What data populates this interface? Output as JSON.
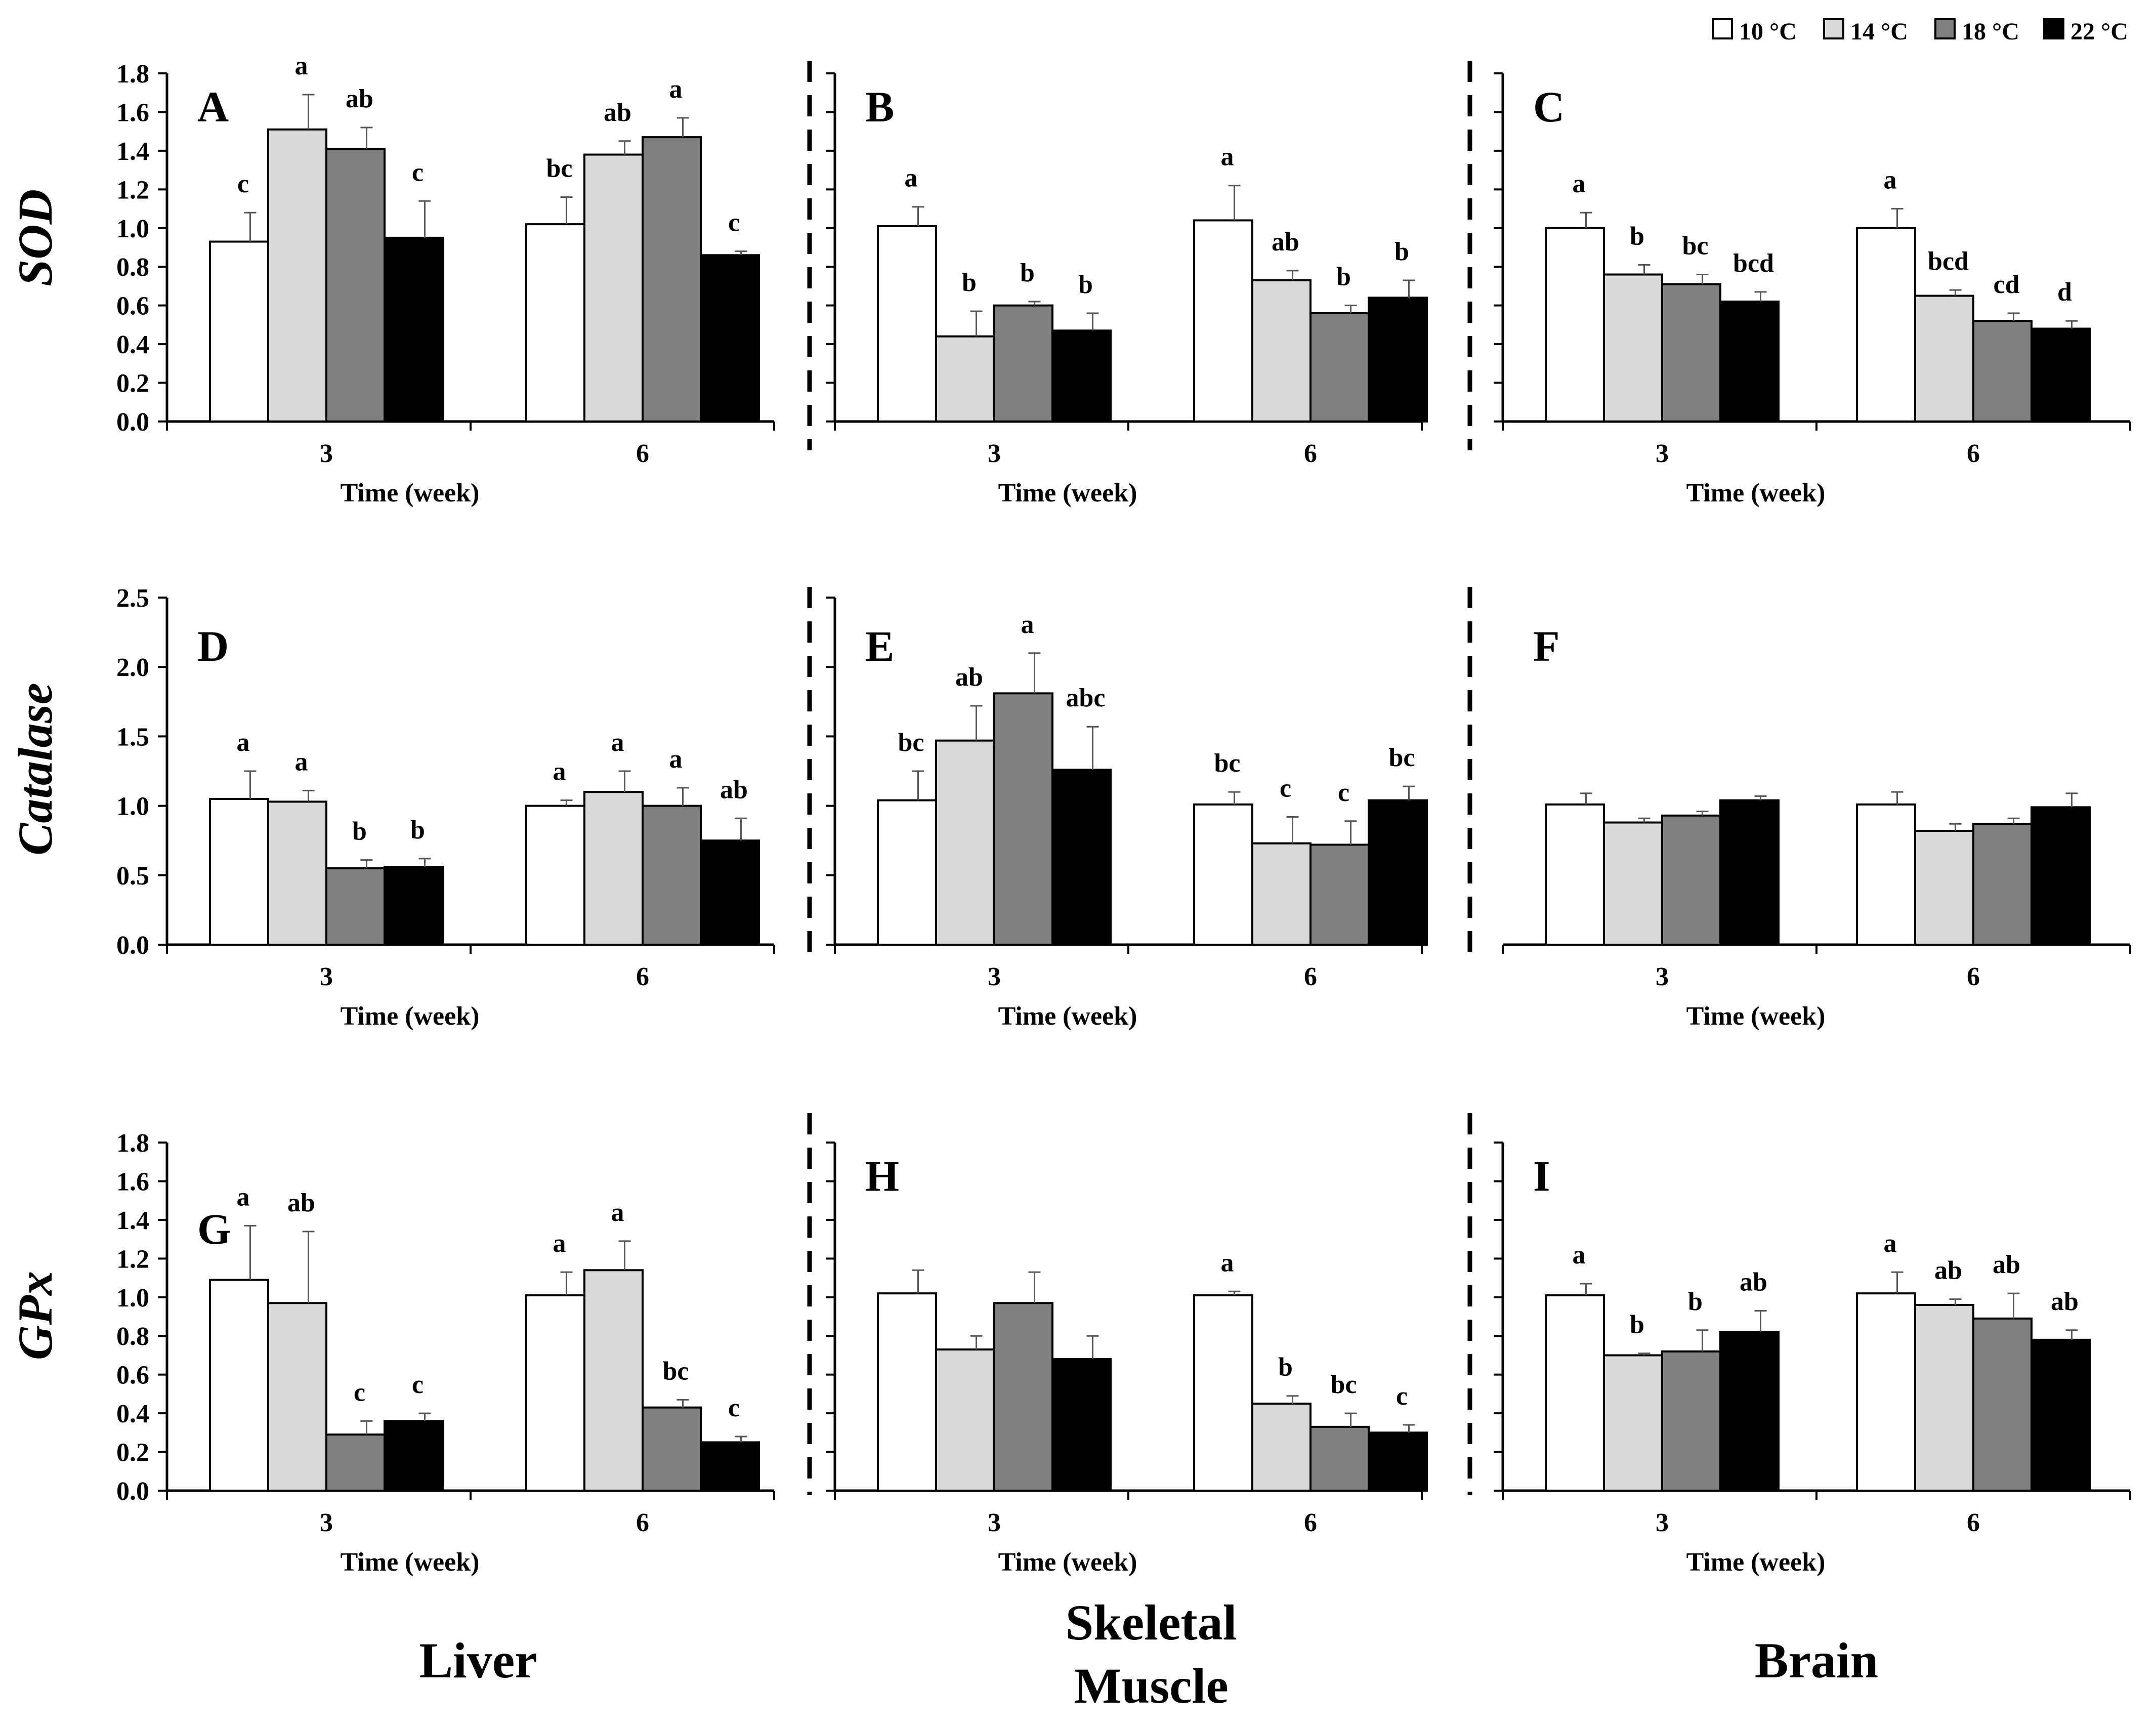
{
  "legend": {
    "position": "top-right",
    "items": [
      {
        "label": "10 °C",
        "color": "#ffffff"
      },
      {
        "label": "14 °C",
        "color": "#d9d9d9"
      },
      {
        "label": "18 °C",
        "color": "#808080"
      },
      {
        "label": "22 °C",
        "color": "#000000"
      }
    ]
  },
  "row_labels": [
    "SOD",
    "Catalase",
    "GPx"
  ],
  "column_labels": [
    "Liver",
    "Skeletal\nMuscle",
    "Brain"
  ],
  "chart_data": [
    {
      "type": "bar",
      "panel": "A",
      "ylabel": "SOD",
      "xlabel": "Time (week)",
      "categories": [
        "3",
        "6"
      ],
      "ylim": [
        0,
        1.8
      ],
      "yticks": [
        "0.0",
        "0.2",
        "0.4",
        "0.6",
        "0.8",
        "1.0",
        "1.2",
        "1.4",
        "1.6",
        "1.8"
      ],
      "series": [
        {
          "name": "10 °C",
          "values": [
            0.93,
            1.02
          ],
          "errors": [
            0.15,
            0.14
          ],
          "letters": [
            "c",
            "bc"
          ]
        },
        {
          "name": "14 °C",
          "values": [
            1.51,
            1.38
          ],
          "errors": [
            0.18,
            0.07
          ],
          "letters": [
            "a",
            "ab"
          ]
        },
        {
          "name": "18 °C",
          "values": [
            1.41,
            1.47
          ],
          "errors": [
            0.11,
            0.1
          ],
          "letters": [
            "ab",
            "a"
          ]
        },
        {
          "name": "22 °C",
          "values": [
            0.95,
            0.86
          ],
          "errors": [
            0.19,
            0.02
          ],
          "letters": [
            "c",
            "c"
          ]
        }
      ]
    },
    {
      "type": "bar",
      "panel": "B",
      "ylabel": "SOD",
      "xlabel": "Time (week)",
      "categories": [
        "3",
        "6"
      ],
      "ylim": [
        0,
        1.8
      ],
      "yticks": [],
      "series": [
        {
          "name": "10 °C",
          "values": [
            1.01,
            1.04
          ],
          "errors": [
            0.1,
            0.18
          ],
          "letters": [
            "a",
            "a"
          ]
        },
        {
          "name": "14 °C",
          "values": [
            0.44,
            0.73
          ],
          "errors": [
            0.13,
            0.05
          ],
          "letters": [
            "b",
            "ab"
          ]
        },
        {
          "name": "18 °C",
          "values": [
            0.6,
            0.56
          ],
          "errors": [
            0.02,
            0.04
          ],
          "letters": [
            "b",
            "b"
          ]
        },
        {
          "name": "22 °C",
          "values": [
            0.47,
            0.64
          ],
          "errors": [
            0.09,
            0.09
          ],
          "letters": [
            "b",
            "b"
          ]
        }
      ]
    },
    {
      "type": "bar",
      "panel": "C",
      "ylabel": "SOD",
      "xlabel": "Time (week)",
      "categories": [
        "3",
        "6"
      ],
      "ylim": [
        0,
        1.8
      ],
      "yticks": [],
      "series": [
        {
          "name": "10 °C",
          "values": [
            1.0,
            1.0
          ],
          "errors": [
            0.08,
            0.1
          ],
          "letters": [
            "a",
            "a"
          ]
        },
        {
          "name": "14 °C",
          "values": [
            0.76,
            0.65
          ],
          "errors": [
            0.05,
            0.03
          ],
          "letters": [
            "b",
            "bcd"
          ]
        },
        {
          "name": "18 °C",
          "values": [
            0.71,
            0.52
          ],
          "errors": [
            0.05,
            0.04
          ],
          "letters": [
            "bc",
            "cd"
          ]
        },
        {
          "name": "22 °C",
          "values": [
            0.62,
            0.48
          ],
          "errors": [
            0.05,
            0.04
          ],
          "letters": [
            "bcd",
            "d"
          ]
        }
      ]
    },
    {
      "type": "bar",
      "panel": "D",
      "ylabel": "Catalase",
      "xlabel": "Time (week)",
      "categories": [
        "3",
        "6"
      ],
      "ylim": [
        0,
        2.5
      ],
      "yticks": [
        "0.0",
        "0.5",
        "1.0",
        "1.5",
        "2.0",
        "2.5"
      ],
      "series": [
        {
          "name": "10 °C",
          "values": [
            1.05,
            1.0
          ],
          "errors": [
            0.2,
            0.04
          ],
          "letters": [
            "a",
            "a"
          ]
        },
        {
          "name": "14 °C",
          "values": [
            1.03,
            1.1
          ],
          "errors": [
            0.08,
            0.15
          ],
          "letters": [
            "a",
            "a"
          ]
        },
        {
          "name": "18 °C",
          "values": [
            0.55,
            1.0
          ],
          "errors": [
            0.06,
            0.13
          ],
          "letters": [
            "b",
            "a"
          ]
        },
        {
          "name": "22 °C",
          "values": [
            0.56,
            0.75
          ],
          "errors": [
            0.06,
            0.16
          ],
          "letters": [
            "b",
            "ab"
          ]
        }
      ]
    },
    {
      "type": "bar",
      "panel": "E",
      "ylabel": "Catalase",
      "xlabel": "Time (week)",
      "categories": [
        "3",
        "6"
      ],
      "ylim": [
        0,
        2.5
      ],
      "yticks": [],
      "series": [
        {
          "name": "10 °C",
          "values": [
            1.04,
            1.01
          ],
          "errors": [
            0.21,
            0.09
          ],
          "letters": [
            "bc",
            "bc"
          ]
        },
        {
          "name": "14 °C",
          "values": [
            1.47,
            0.73
          ],
          "errors": [
            0.25,
            0.19
          ],
          "letters": [
            "ab",
            "c"
          ]
        },
        {
          "name": "18 °C",
          "values": [
            1.81,
            0.72
          ],
          "errors": [
            0.29,
            0.17
          ],
          "letters": [
            "a",
            "c"
          ]
        },
        {
          "name": "22 °C",
          "values": [
            1.26,
            1.04
          ],
          "errors": [
            0.31,
            0.1
          ],
          "letters": [
            "abc",
            "bc"
          ]
        }
      ]
    },
    {
      "type": "bar",
      "panel": "F",
      "ylabel": "Catalase",
      "xlabel": "Time (week)",
      "categories": [
        "3",
        "6"
      ],
      "ylim": [
        0,
        2.5
      ],
      "yticks": [],
      "series": [
        {
          "name": "10 °C",
          "values": [
            1.01,
            1.01
          ],
          "errors": [
            0.08,
            0.09
          ],
          "letters": [
            "",
            ""
          ]
        },
        {
          "name": "14 °C",
          "values": [
            0.88,
            0.82
          ],
          "errors": [
            0.03,
            0.05
          ],
          "letters": [
            "",
            ""
          ]
        },
        {
          "name": "18 °C",
          "values": [
            0.93,
            0.87
          ],
          "errors": [
            0.03,
            0.04
          ],
          "letters": [
            "",
            ""
          ]
        },
        {
          "name": "22 °C",
          "values": [
            1.04,
            0.99
          ],
          "errors": [
            0.03,
            0.1
          ],
          "letters": [
            "",
            ""
          ]
        }
      ]
    },
    {
      "type": "bar",
      "panel": "G",
      "ylabel": "GPx",
      "xlabel": "Time (week)",
      "categories": [
        "3",
        "6"
      ],
      "ylim": [
        0,
        1.8
      ],
      "yticks": [
        "0.0",
        "0.2",
        "0.4",
        "0.6",
        "0.8",
        "1.0",
        "1.2",
        "1.4",
        "1.6",
        "1.8"
      ],
      "series": [
        {
          "name": "10 °C",
          "values": [
            1.09,
            1.01
          ],
          "errors": [
            0.28,
            0.12
          ],
          "letters": [
            "a",
            "a"
          ]
        },
        {
          "name": "14 °C",
          "values": [
            0.97,
            1.14
          ],
          "errors": [
            0.37,
            0.15
          ],
          "letters": [
            "ab",
            "a"
          ]
        },
        {
          "name": "18 °C",
          "values": [
            0.29,
            0.43
          ],
          "errors": [
            0.07,
            0.04
          ],
          "letters": [
            "c",
            "bc"
          ]
        },
        {
          "name": "22 °C",
          "values": [
            0.36,
            0.25
          ],
          "errors": [
            0.04,
            0.03
          ],
          "letters": [
            "c",
            "c"
          ]
        }
      ]
    },
    {
      "type": "bar",
      "panel": "H",
      "ylabel": "GPx",
      "xlabel": "Time (week)",
      "categories": [
        "3",
        "6"
      ],
      "ylim": [
        0,
        1.8
      ],
      "yticks": [],
      "series": [
        {
          "name": "10 °C",
          "values": [
            1.02,
            1.01
          ],
          "errors": [
            0.12,
            0.02
          ],
          "letters": [
            "",
            "a"
          ]
        },
        {
          "name": "14 °C",
          "values": [
            0.73,
            0.45
          ],
          "errors": [
            0.07,
            0.04
          ],
          "letters": [
            "",
            "b"
          ]
        },
        {
          "name": "18 °C",
          "values": [
            0.97,
            0.33
          ],
          "errors": [
            0.16,
            0.07
          ],
          "letters": [
            "",
            "bc"
          ]
        },
        {
          "name": "22 °C",
          "values": [
            0.68,
            0.3
          ],
          "errors": [
            0.12,
            0.04
          ],
          "letters": [
            "",
            "c"
          ]
        }
      ]
    },
    {
      "type": "bar",
      "panel": "I",
      "ylabel": "GPx",
      "xlabel": "Time (week)",
      "categories": [
        "3",
        "6"
      ],
      "ylim": [
        0,
        1.8
      ],
      "yticks": [],
      "series": [
        {
          "name": "10 °C",
          "values": [
            1.01,
            1.02
          ],
          "errors": [
            0.06,
            0.11
          ],
          "letters": [
            "a",
            "a"
          ]
        },
        {
          "name": "14 °C",
          "values": [
            0.7,
            0.96
          ],
          "errors": [
            0.01,
            0.03
          ],
          "letters": [
            "b",
            "ab"
          ]
        },
        {
          "name": "18 °C",
          "values": [
            0.72,
            0.89
          ],
          "errors": [
            0.11,
            0.13
          ],
          "letters": [
            "b",
            "ab"
          ]
        },
        {
          "name": "22 °C",
          "values": [
            0.82,
            0.78
          ],
          "errors": [
            0.11,
            0.05
          ],
          "letters": [
            "ab",
            "ab"
          ]
        }
      ]
    }
  ]
}
